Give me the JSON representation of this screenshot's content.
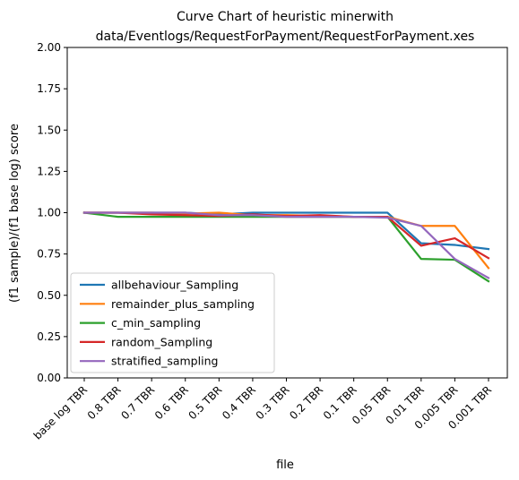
{
  "chart_data": {
    "type": "line",
    "title_line1": "Curve Chart of heuristic minerwith",
    "title_line2": "data/Eventlogs/RequestForPayment/RequestForPayment.xes",
    "xlabel": "file",
    "ylabel": "(f1 sample)/(f1 base log) score",
    "ylim": [
      0,
      2
    ],
    "yticks": [
      "0.00",
      "0.25",
      "0.50",
      "0.75",
      "1.00",
      "1.25",
      "1.50",
      "1.75",
      "2.00"
    ],
    "categories": [
      "base log TBR",
      "0.8 TBR",
      "0.7 TBR",
      "0.6 TBR",
      "0.5 TBR",
      "0.4 TBR",
      "0.3 TBR",
      "0.2 TBR",
      "0.1 TBR",
      "0.05 TBR",
      "0.01 TBR",
      "0.005 TBR",
      "0.001 TBR"
    ],
    "legend_position": "lower-left",
    "grid": false,
    "series": [
      {
        "name": "allbehaviour_Sampling",
        "color": "#1f77b4",
        "values": [
          1.0,
          1.0,
          1.0,
          1.0,
          0.99,
          1.0,
          1.0,
          1.0,
          1.0,
          1.0,
          0.815,
          0.805,
          0.78
        ]
      },
      {
        "name": "remainder_plus_sampling",
        "color": "#ff7f0e",
        "values": [
          1.0,
          1.0,
          1.0,
          0.995,
          1.0,
          0.985,
          0.985,
          0.98,
          0.975,
          0.975,
          0.92,
          0.92,
          0.665
        ]
      },
      {
        "name": "c_min_sampling",
        "color": "#2ca02c",
        "values": [
          1.0,
          0.975,
          0.975,
          0.975,
          0.975,
          0.975,
          0.975,
          0.975,
          0.975,
          0.975,
          0.72,
          0.715,
          0.585
        ]
      },
      {
        "name": "random_Sampling",
        "color": "#d62728",
        "values": [
          1.0,
          1.0,
          0.99,
          0.985,
          0.98,
          0.99,
          0.98,
          0.985,
          0.975,
          0.975,
          0.8,
          0.845,
          0.725
        ]
      },
      {
        "name": "stratified_sampling",
        "color": "#9467bd",
        "values": [
          1.0,
          1.0,
          1.0,
          1.0,
          0.985,
          0.985,
          0.975,
          0.975,
          0.975,
          0.97,
          0.92,
          0.72,
          0.605
        ]
      }
    ]
  }
}
